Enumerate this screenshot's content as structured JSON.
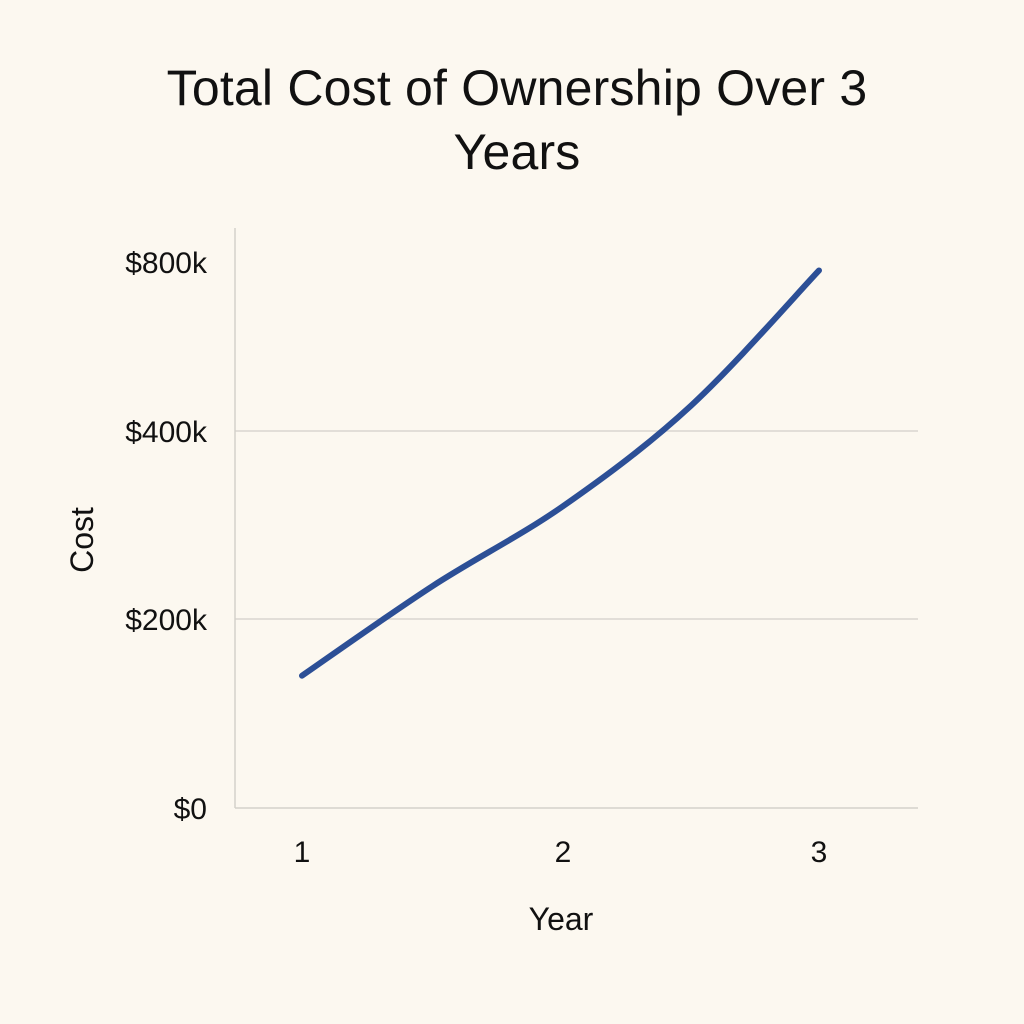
{
  "chart_data": {
    "type": "line",
    "title": "Total Cost of Ownership Over 3 Years",
    "xlabel": "Year",
    "ylabel": "Cost",
    "x": [
      1,
      1.5,
      2,
      2.5,
      3
    ],
    "x_ticks": [
      1,
      2,
      3
    ],
    "x_tick_labels": [
      "1",
      "2",
      "3"
    ],
    "y_ticks": [
      0,
      200000,
      400000,
      800000
    ],
    "y_tick_labels": [
      "$0",
      "$200k",
      "$400k",
      "$800k"
    ],
    "y_tick_positions": [
      0,
      1,
      2,
      3
    ],
    "series": [
      {
        "values": [
          140000,
          235000,
          320000,
          460000,
          780000
        ],
        "color": "#2c4f96"
      }
    ],
    "gridlines": [
      200000,
      400000
    ],
    "grid": true,
    "legend": "none"
  }
}
